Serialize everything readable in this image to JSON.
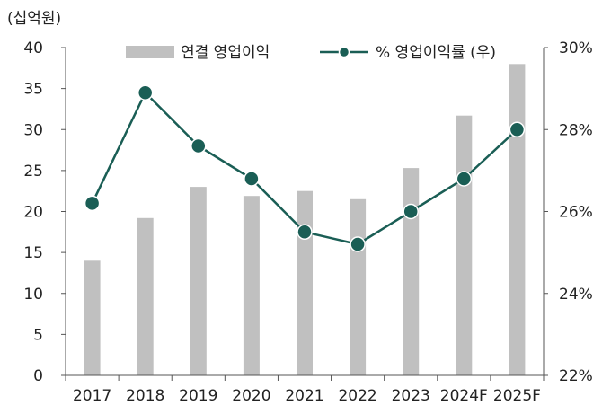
{
  "chart_data": {
    "type": "bar",
    "unit_label": "(십억원)",
    "categories": [
      "2017",
      "2018",
      "2019",
      "2020",
      "2021",
      "2022",
      "2023",
      "2024F",
      "2025F"
    ],
    "series": [
      {
        "name": "연결 영업이익",
        "type": "bar",
        "axis": "left",
        "values": [
          14.0,
          19.2,
          23.0,
          21.9,
          22.5,
          21.5,
          25.3,
          31.7,
          38.0
        ]
      },
      {
        "name": "% 영업이익률 (우)",
        "type": "line",
        "axis": "right",
        "values": [
          26.2,
          28.9,
          27.6,
          26.8,
          25.5,
          25.2,
          26.0,
          26.8,
          28.0
        ]
      }
    ],
    "y_left": {
      "min": 0,
      "max": 40,
      "step": 5,
      "ticks": [
        "0",
        "5",
        "10",
        "15",
        "20",
        "25",
        "30",
        "35",
        "40"
      ]
    },
    "y_right": {
      "min": 22,
      "max": 30,
      "step": 2,
      "ticks": [
        "22%",
        "24%",
        "26%",
        "28%",
        "30%"
      ]
    },
    "legend_position": "top",
    "grid": false,
    "colors": {
      "bar": "#c0c0c0",
      "line": "#1a5e55",
      "axis": "#555555",
      "text": "#222222"
    }
  }
}
